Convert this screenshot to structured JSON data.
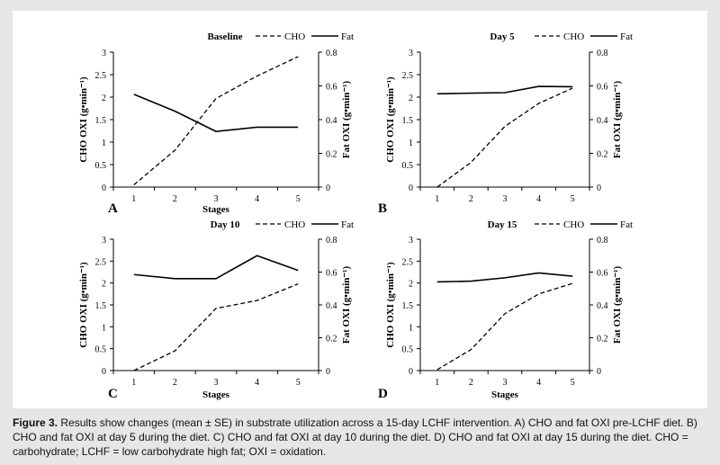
{
  "caption": {
    "label": "Figure 3.",
    "text": "Results show changes (mean ± SE) in substrate utilization across a 15-day LCHF intervention. A) CHO and fat OXI pre-LCHF diet. B) CHO and fat OXI at day 5 during the diet. C) CHO and fat OXI at day 10 during the diet. D) CHO and fat OXI at day 15 during the diet. CHO = carbohydrate; LCHF = low carbohydrate high fat; OXI = oxidation."
  },
  "colors": {
    "line": "#000000",
    "background": "#ffffff",
    "frame": "#e6e6e6"
  },
  "chart_data": [
    {
      "type": "line",
      "panel": "A",
      "title": "Baseline",
      "xlabel": "Stages",
      "ylabel": "CHO OXI (g•min⁻¹)",
      "y2label": "Fat OXI (g•min⁻¹)",
      "categories": [
        1,
        2,
        3,
        4,
        5
      ],
      "ylim": [
        0,
        3
      ],
      "y2lim": [
        0,
        0.8
      ],
      "yticks": [
        0,
        0.5,
        1,
        1.5,
        2,
        2.5,
        3
      ],
      "y2ticks": [
        0,
        0.2,
        0.4,
        0.6,
        0.8
      ],
      "series": [
        {
          "name": "CHO",
          "axis": "left",
          "style": "dashed",
          "values": [
            0.05,
            0.82,
            1.97,
            2.47,
            2.9
          ]
        },
        {
          "name": "Fat",
          "axis": "right",
          "style": "solid",
          "values": [
            0.55,
            0.45,
            0.33,
            0.355,
            0.355
          ]
        }
      ]
    },
    {
      "type": "line",
      "panel": "B",
      "title": "Day 5",
      "xlabel": "",
      "ylabel": "CHO OXI (g•min⁻¹)",
      "y2label": "Fat OXI (g•min⁻¹)",
      "categories": [
        1,
        2,
        3,
        4,
        5
      ],
      "ylim": [
        0,
        3
      ],
      "y2lim": [
        0,
        0.8
      ],
      "yticks": [
        0,
        0.5,
        1,
        1.5,
        2,
        2.5,
        3
      ],
      "y2ticks": [
        0,
        0.2,
        0.4,
        0.6,
        0.8
      ],
      "series": [
        {
          "name": "CHO",
          "axis": "left",
          "style": "dashed",
          "values": [
            0.0,
            0.55,
            1.35,
            1.86,
            2.2
          ]
        },
        {
          "name": "Fat",
          "axis": "right",
          "style": "solid",
          "values": [
            0.553,
            0.557,
            0.56,
            0.597,
            0.595
          ]
        }
      ]
    },
    {
      "type": "line",
      "panel": "C",
      "title": "Day 10",
      "xlabel": "Stages",
      "ylabel": "CHO OXI (g•min⁻¹)",
      "y2label": "Fat OXI (g•min⁻¹)",
      "categories": [
        1,
        2,
        3,
        4,
        5
      ],
      "ylim": [
        0,
        3
      ],
      "y2lim": [
        0,
        0.8
      ],
      "yticks": [
        0,
        0.5,
        1,
        1.5,
        2,
        2.5,
        3
      ],
      "y2ticks": [
        0,
        0.2,
        0.4,
        0.6,
        0.8
      ],
      "series": [
        {
          "name": "CHO",
          "axis": "left",
          "style": "dashed",
          "values": [
            0.0,
            0.45,
            1.42,
            1.6,
            1.98
          ]
        },
        {
          "name": "Fat",
          "axis": "right",
          "style": "solid",
          "values": [
            0.585,
            0.56,
            0.56,
            0.7,
            0.61
          ]
        }
      ]
    },
    {
      "type": "line",
      "panel": "D",
      "title": "Day 15",
      "xlabel": "Stages",
      "ylabel": "CHO OXI (g•min⁻¹)",
      "y2label": "Fat OXI (g•min⁻¹)",
      "categories": [
        1,
        2,
        3,
        4,
        5
      ],
      "ylim": [
        0,
        3
      ],
      "y2lim": [
        0,
        0.8
      ],
      "yticks": [
        0,
        0.5,
        1,
        1.5,
        2,
        2.5,
        3
      ],
      "y2ticks": [
        0,
        0.2,
        0.4,
        0.6,
        0.8
      ],
      "series": [
        {
          "name": "CHO",
          "axis": "left",
          "style": "dashed",
          "values": [
            0.02,
            0.48,
            1.3,
            1.75,
            1.99
          ]
        },
        {
          "name": "Fat",
          "axis": "right",
          "style": "solid",
          "values": [
            0.54,
            0.545,
            0.565,
            0.595,
            0.575
          ]
        }
      ]
    }
  ]
}
